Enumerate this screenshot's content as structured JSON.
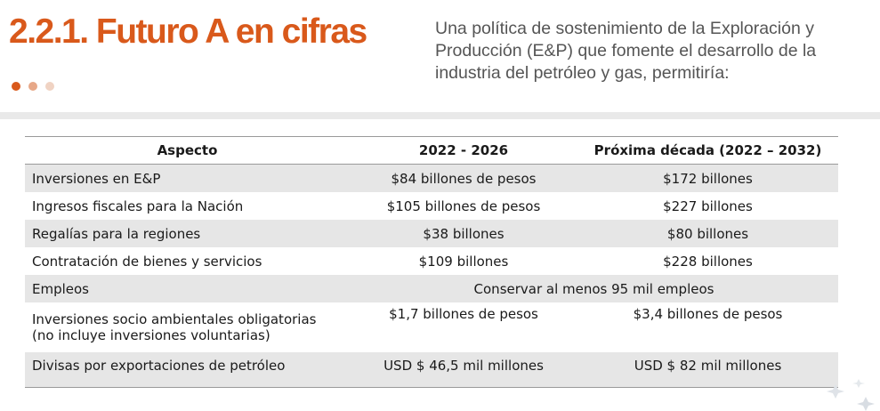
{
  "header": {
    "title": "2.2.1. Futuro A en cifras",
    "intro": "Una política de sostenimiento de la Exploración y Producción (E&P) que fomente el desarrollo de la industria del petróleo y gas, permitiría:",
    "dot_colors": [
      "#d9591b",
      "#e7a888",
      "#f0d3c3"
    ]
  },
  "table": {
    "headers": [
      "Aspecto",
      "2022 - 2026",
      "Próxima década (2022 – 2032)"
    ],
    "rows": [
      {
        "aspect": "Inversiones en E&P",
        "period1": "$84 billones de pesos",
        "period2": "$172 billones"
      },
      {
        "aspect": "Ingresos fiscales para la Nación",
        "period1": "$105 billones de pesos",
        "period2": "$227 billones"
      },
      {
        "aspect": "Regalías para la regiones",
        "period1": "$38 billones",
        "period2": "$80 billones"
      },
      {
        "aspect": "Contratación de bienes y servicios",
        "period1": "$109 billones",
        "period2": "$228 billones"
      },
      {
        "aspect": "Empleos",
        "merged": "Conservar al menos 95 mil empleos"
      },
      {
        "aspect_line1": "Inversiones socio ambientales obligatorias",
        "aspect_line2": "(no incluye inversiones voluntarias)",
        "period1": "$1,7 billones de pesos",
        "period2": "$3,4 billones de pesos"
      },
      {
        "aspect": "Divisas por exportaciones de petróleo",
        "period1": "USD $ 46,5 mil millones",
        "period2": "USD $ 82 mil millones"
      }
    ]
  }
}
